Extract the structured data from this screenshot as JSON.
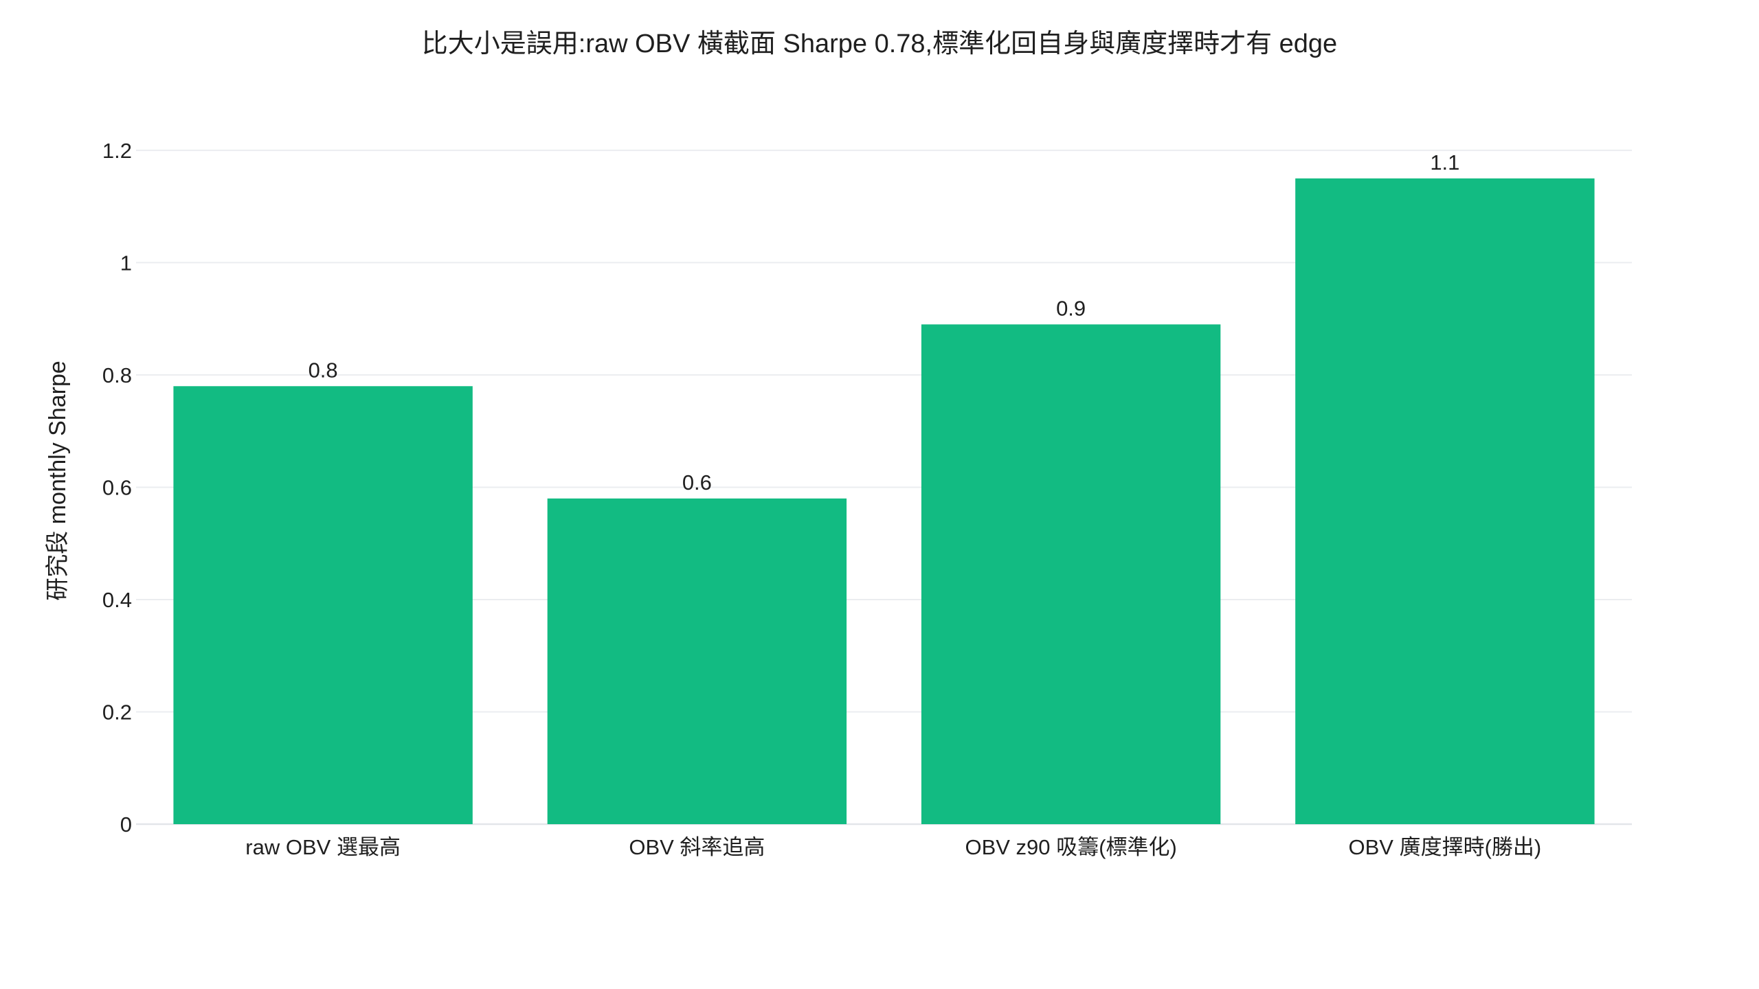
{
  "chart_data": {
    "type": "bar",
    "title": "比大小是誤用:raw OBV 橫截面 Sharpe 0.78,標準化回自身與廣度擇時才有 edge",
    "xlabel": "",
    "ylabel": "研究段 monthly Sharpe",
    "categories": [
      "raw OBV 選最高",
      "OBV 斜率追高",
      "OBV z90 吸籌(標準化)",
      "OBV 廣度擇時(勝出)"
    ],
    "values": [
      0.78,
      0.58,
      0.89,
      1.15
    ],
    "data_labels": [
      "0.8",
      "0.6",
      "0.9",
      "1.1"
    ],
    "ylim": [
      0,
      1.25
    ],
    "yticks": [
      0,
      0.2,
      0.4,
      0.6,
      0.8,
      1,
      1.2
    ],
    "ytick_labels": [
      "0",
      "0.2",
      "0.4",
      "0.6",
      "0.8",
      "1",
      "1.2"
    ],
    "grid": true,
    "bar_color": "#12bb82"
  }
}
